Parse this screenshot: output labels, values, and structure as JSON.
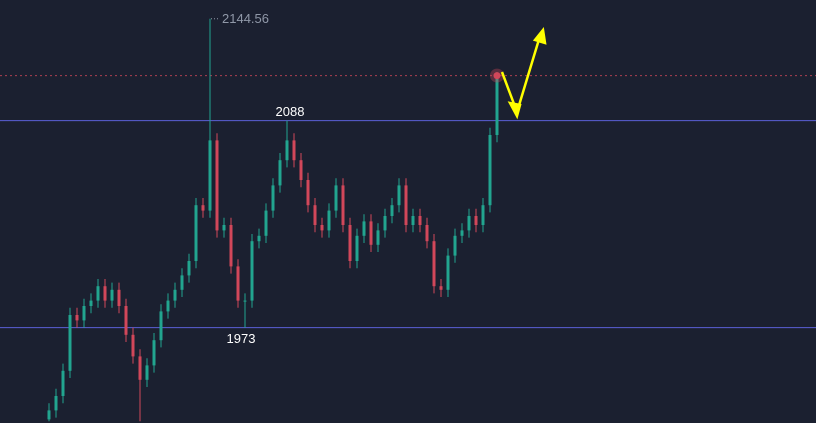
{
  "chart_data": {
    "type": "candlestick",
    "ylim": [
      1920,
      2155
    ],
    "up_color": "#22a58f",
    "down_color": "#d2475a",
    "open": [
      1922,
      1927,
      1935,
      1949,
      1980,
      1977,
      1985,
      1988,
      1996,
      1988,
      1994,
      1985,
      1969,
      1957,
      1944,
      1952,
      1966,
      1982,
      1988,
      1994,
      2002,
      2010,
      2041,
      2038,
      2077,
      2027,
      2030,
      2007,
      1988,
      1988,
      2021,
      2024,
      2038,
      2052,
      2066,
      2077,
      2066,
      2055,
      2041,
      2030,
      2027,
      2038,
      2052,
      2030,
      2010,
      2024,
      2032,
      2019,
      2027,
      2035,
      2041,
      2052,
      2030,
      2035,
      2030,
      2021,
      1996,
      1994,
      2013,
      2024,
      2027,
      2035,
      2030,
      2041,
      2080
    ],
    "high": [
      1931,
      1939,
      1953,
      1984,
      1984,
      1989,
      1992,
      2000,
      2000,
      1998,
      1998,
      1989,
      1973,
      1961,
      1956,
      1970,
      1986,
      1992,
      1998,
      2006,
      2014,
      2045,
      2045,
      2144.56,
      2081,
      2034,
      2034,
      2011,
      1992,
      2025,
      2028,
      2042,
      2056,
      2070,
      2088,
      2081,
      2070,
      2059,
      2045,
      2034,
      2042,
      2056,
      2056,
      2034,
      2028,
      2036,
      2036,
      2031,
      2039,
      2045,
      2056,
      2056,
      2039,
      2039,
      2034,
      2025,
      2000,
      2017,
      2028,
      2031,
      2039,
      2039,
      2045,
      2084,
      2115
    ],
    "low": [
      1921,
      1923,
      1931,
      1945,
      1973,
      1973,
      1981,
      1984,
      1984,
      1984,
      1981,
      1965,
      1953,
      1921,
      1940,
      1948,
      1962,
      1978,
      1984,
      1990,
      1998,
      2006,
      2034,
      2034,
      2023,
      2023,
      2003,
      1984,
      1973,
      1984,
      2017,
      2020,
      2034,
      2048,
      2062,
      2062,
      2051,
      2037,
      2026,
      2023,
      2023,
      2034,
      2026,
      2006,
      2006,
      2020,
      2015,
      2015,
      2023,
      2031,
      2037,
      2026,
      2026,
      2026,
      2017,
      1992,
      1990,
      1990,
      2009,
      2020,
      2023,
      2026,
      2026,
      2037,
      2076
    ],
    "close": [
      1927,
      1935,
      1949,
      1980,
      1977,
      1985,
      1988,
      1996,
      1988,
      1994,
      1985,
      1969,
      1957,
      1944,
      1952,
      1966,
      1982,
      1988,
      1994,
      2002,
      2010,
      2041,
      2038,
      2077,
      2027,
      2030,
      2007,
      1988,
      1988,
      2021,
      2024,
      2038,
      2052,
      2066,
      2077,
      2066,
      2055,
      2041,
      2030,
      2027,
      2038,
      2052,
      2030,
      2010,
      2024,
      2032,
      2019,
      2027,
      2035,
      2041,
      2052,
      2030,
      2035,
      2030,
      2021,
      1996,
      1994,
      2013,
      2024,
      2027,
      2035,
      2030,
      2041,
      2080,
      2113
    ],
    "hlines": [
      2088,
      1973
    ],
    "hline_color": "#5b5fd6",
    "last_price": 2113,
    "last_color": "#d2475a",
    "high_label": 2144.56
  }
}
